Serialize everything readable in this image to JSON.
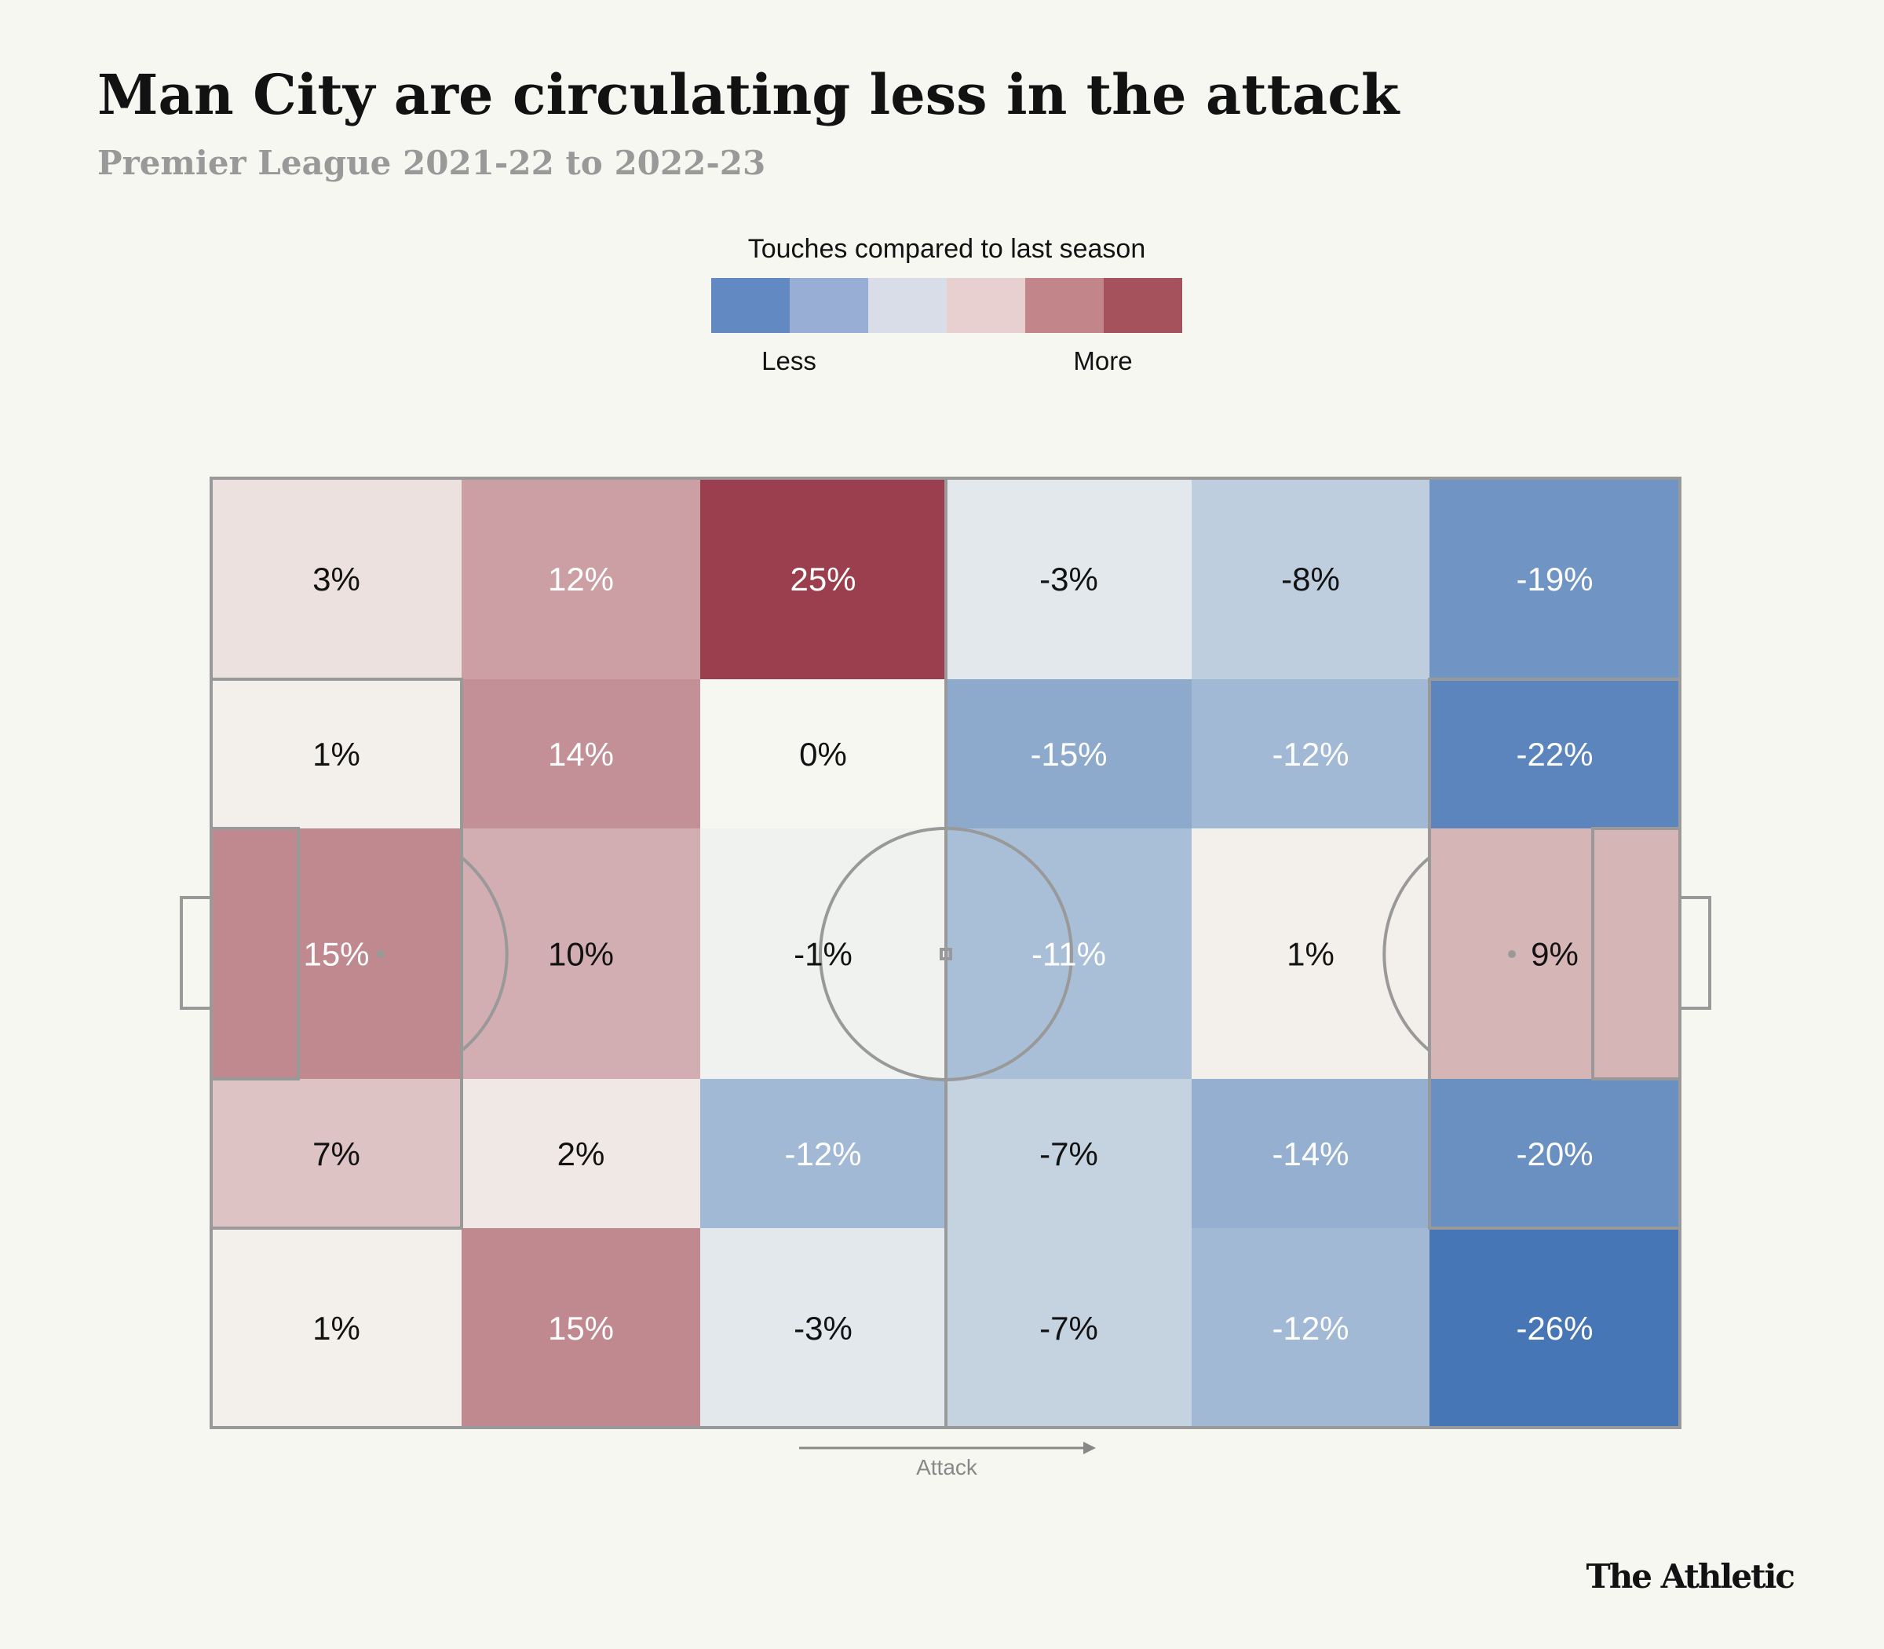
{
  "title": "Man City are circulating less in the attack",
  "subtitle": "Premier League 2021-22 to 2022-23",
  "legend": {
    "title": "Touches compared to last season",
    "less_label": "Less",
    "more_label": "More",
    "swatches": [
      "#6289c2",
      "#99aed4",
      "#d8dde8",
      "#e8d0d0",
      "#c2868a",
      "#a5525d"
    ]
  },
  "direction_label": "Attack",
  "brand": "The Athletic",
  "colors": {
    "background": "#f7f7f2",
    "negative_max": "#4676b5",
    "neutral": "#f7f7f2",
    "positive_max": "#9b3f4f",
    "lines": "#999999"
  },
  "chart_data": {
    "type": "heatmap",
    "title": "Man City are circulating less in the attack",
    "subtitle": "Premier League 2021-22 to 2022-23",
    "unit": "%",
    "layout": "football pitch, 6 columns (own goal to opponent goal, attack left-to-right) x 5 rows (top to bottom)",
    "rows": [
      [
        3,
        12,
        25,
        -3,
        -8,
        -19
      ],
      [
        1,
        14,
        0,
        -15,
        -12,
        -22
      ],
      [
        15,
        10,
        -1,
        -11,
        1,
        9
      ],
      [
        7,
        2,
        -12,
        -7,
        -14,
        -20
      ],
      [
        1,
        15,
        -3,
        -7,
        -12,
        -26
      ]
    ],
    "labels": [
      [
        "3%",
        "12%",
        "25%",
        "-3%",
        "-8%",
        "-19%"
      ],
      [
        "1%",
        "14%",
        "0%",
        "-15%",
        "-12%",
        "-22%"
      ],
      [
        "15%",
        "10%",
        "-1%",
        "-11%",
        "1%",
        "9%"
      ],
      [
        "7%",
        "2%",
        "-12%",
        "-7%",
        "-14%",
        "-20%"
      ],
      [
        "1%",
        "15%",
        "-3%",
        "-7%",
        "-12%",
        "-26%"
      ]
    ]
  }
}
